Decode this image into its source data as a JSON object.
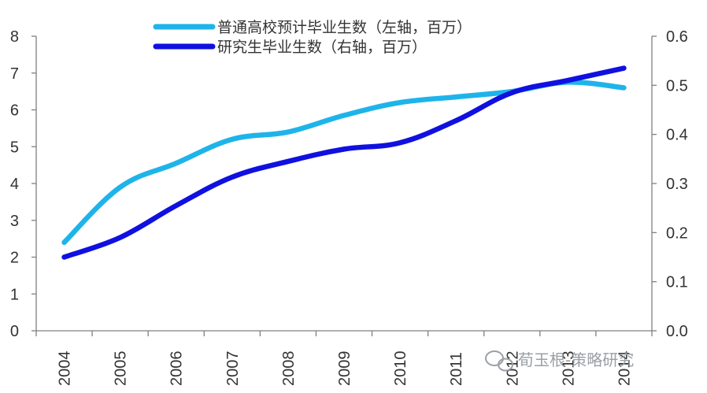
{
  "chart_data": {
    "type": "line",
    "x": [
      "2004",
      "2005",
      "2006",
      "2007",
      "2008",
      "2009",
      "2010",
      "2011",
      "2012",
      "2013",
      "2014"
    ],
    "series": [
      {
        "name": "普通高校预计毕业生数（左轴，百万）",
        "axis": "left",
        "color": "#1EB4EA",
        "values": [
          2.4,
          3.9,
          4.55,
          5.2,
          5.4,
          5.85,
          6.2,
          6.35,
          6.5,
          6.75,
          6.6
        ]
      },
      {
        "name": "研究生毕业生数（右轴，百万）",
        "axis": "right",
        "color": "#1010E0",
        "values": [
          0.15,
          0.19,
          0.255,
          0.313,
          0.345,
          0.37,
          0.383,
          0.428,
          0.485,
          0.51,
          0.535
        ]
      }
    ],
    "left_axis": {
      "min": 0,
      "max": 8,
      "ticks": [
        "0",
        "1",
        "2",
        "3",
        "4",
        "5",
        "6",
        "7",
        "8"
      ]
    },
    "right_axis": {
      "min": 0,
      "max": 0.6,
      "ticks": [
        "0.0",
        "0.1",
        "0.2",
        "0.3",
        "0.4",
        "0.5",
        "0.6"
      ]
    },
    "grid": false,
    "legend_position": "top-center"
  },
  "watermark": {
    "text": "荀玉根-策略研究",
    "icon": "wechat-icon"
  }
}
